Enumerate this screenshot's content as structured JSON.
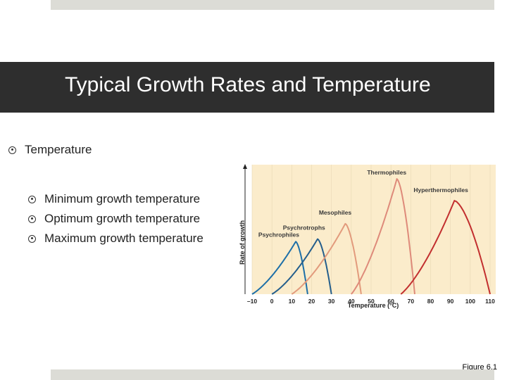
{
  "slide": {
    "title": "Typical Growth Rates and Temperature",
    "bullets": [
      {
        "text": "Temperature",
        "level": 1
      },
      {
        "text": "Minimum growth temperature",
        "level": 2
      },
      {
        "text": "Optimum growth temperature",
        "level": 2
      },
      {
        "text": "Maximum growth temperature",
        "level": 2
      }
    ],
    "caption": "Figure 6.1"
  },
  "chart_data": {
    "type": "line",
    "xlabel": "Temperature (°C)",
    "ylabel": "Rate of growth",
    "xlim": [
      -10,
      110
    ],
    "x_ticks": [
      "–10",
      "0",
      "10",
      "20",
      "30",
      "40",
      "50",
      "60",
      "70",
      "80",
      "90",
      "100",
      "110"
    ],
    "background": "#fbeccb",
    "series": [
      {
        "name": "Psychrophiles",
        "color": "#1d6fa8",
        "min": -10,
        "opt": 12,
        "max": 18,
        "peak": 0.41
      },
      {
        "name": "Psychrotrophs",
        "color": "#245e8c",
        "min": 0,
        "opt": 23,
        "max": 30,
        "peak": 0.43
      },
      {
        "name": "Mesophiles",
        "color": "#e29a7c",
        "min": 10,
        "opt": 37,
        "max": 45,
        "peak": 0.55
      },
      {
        "name": "Thermophiles",
        "color": "#de8a7a",
        "min": 40,
        "opt": 63,
        "max": 72,
        "peak": 0.9
      },
      {
        "name": "Hyperthermophiles",
        "color": "#c22f2f",
        "min": 65,
        "opt": 92,
        "max": 110,
        "peak": 0.73
      }
    ]
  }
}
